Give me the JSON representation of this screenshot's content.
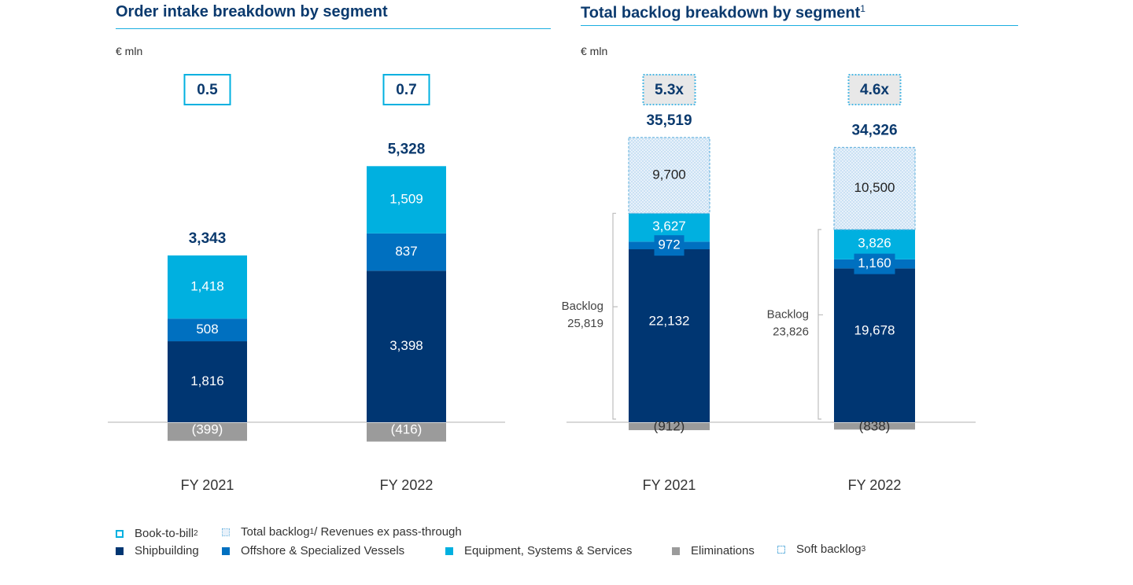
{
  "titles": {
    "left": "Order intake breakdown by segment",
    "right": "Total backlog breakdown by segment",
    "right_sup": "1"
  },
  "units": {
    "left": "€ mln",
    "right": "€ mln"
  },
  "colors": {
    "shipbuilding": "#003672",
    "offshore": "#0070c0",
    "equipment": "#00b0e0",
    "eliminations": "#9b9b9b",
    "soft_fill": "#dbe9f6",
    "soft_border": "#6fb7e0",
    "title": "#0b3a6e",
    "rule": "#1aaee0"
  },
  "chart_data": [
    {
      "type": "bar",
      "stacked": true,
      "title": "Order intake breakdown by segment",
      "ylabel": "€ mln",
      "categories": [
        "FY 2021",
        "FY 2022"
      ],
      "series": [
        {
          "name": "Shipbuilding",
          "values": [
            1816,
            3398
          ],
          "labels": [
            "1,816",
            "3,398"
          ]
        },
        {
          "name": "Offshore & Specialized Vessels",
          "values": [
            508,
            837
          ],
          "labels": [
            "508",
            "837"
          ]
        },
        {
          "name": "Equipment, Systems & Services",
          "values": [
            1418,
            1509
          ],
          "labels": [
            "1,418",
            "1,509"
          ]
        },
        {
          "name": "Eliminations",
          "values": [
            -399,
            -416
          ],
          "labels": [
            "(399)",
            "(416)"
          ]
        }
      ],
      "totals": [
        "3,343",
        "5,328"
      ],
      "book_to_bill": [
        "0.5",
        "0.7"
      ]
    },
    {
      "type": "bar",
      "stacked": true,
      "title": "Total backlog breakdown by segment",
      "ylabel": "€ mln",
      "categories": [
        "FY 2021",
        "FY 2022"
      ],
      "series": [
        {
          "name": "Shipbuilding",
          "values": [
            22132,
            19678
          ],
          "labels": [
            "22,132",
            "19,678"
          ]
        },
        {
          "name": "Offshore & Specialized Vessels",
          "values": [
            972,
            1160
          ],
          "labels": [
            "972",
            "1,160"
          ]
        },
        {
          "name": "Equipment, Systems & Services",
          "values": [
            3627,
            3826
          ],
          "labels": [
            "3,627",
            "3,826"
          ]
        },
        {
          "name": "Soft backlog",
          "values": [
            9700,
            10500
          ],
          "labels": [
            "9,700",
            "10,500"
          ]
        },
        {
          "name": "Eliminations",
          "values": [
            -912,
            -838
          ],
          "labels": [
            "(912)",
            "(838)"
          ]
        }
      ],
      "totals": [
        "35,519",
        "34,326"
      ],
      "backlog_brace_label": "Backlog",
      "backlog_values": [
        "25,819",
        "23,826"
      ],
      "ratio": [
        "5.3x",
        "4.6x"
      ]
    }
  ],
  "legend": {
    "book_to_bill": "Book-to-bill",
    "book_to_bill_sup": "2",
    "total_backlog_ratio_a": "Total backlog",
    "total_backlog_ratio_sup": "1",
    "total_backlog_ratio_b": " / Revenues ex pass-through",
    "shipbuilding": "Shipbuilding",
    "offshore": "Offshore & Specialized Vessels",
    "equipment": "Equipment, Systems & Services",
    "eliminations": "Eliminations",
    "soft_backlog": "Soft backlog",
    "soft_backlog_sup": "3"
  }
}
